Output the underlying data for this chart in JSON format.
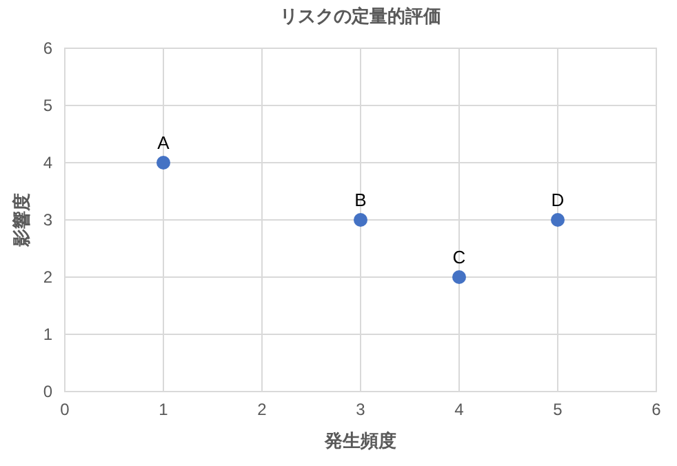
{
  "chart_data": {
    "type": "scatter",
    "title": "リスクの定量的評価",
    "xlabel": "発生頻度",
    "ylabel": "影響度",
    "x": [
      1,
      3,
      4,
      5
    ],
    "series": [
      {
        "color": "#4472c4",
        "values": [
          4,
          3,
          2,
          3
        ]
      }
    ],
    "xlim": [
      0,
      6
    ],
    "ylim": [
      0,
      6
    ],
    "xticks": [
      0,
      1,
      2,
      3,
      4,
      5,
      6
    ],
    "yticks": [
      0,
      1,
      2,
      3,
      4,
      5,
      6
    ],
    "grid": true,
    "marker": "circle",
    "annotations": [
      {
        "text": "A",
        "x": 1,
        "y": 4
      },
      {
        "text": "B",
        "x": 3,
        "y": 3
      },
      {
        "text": "C",
        "x": 4,
        "y": 2
      },
      {
        "text": "D",
        "x": 5,
        "y": 3
      }
    ]
  }
}
